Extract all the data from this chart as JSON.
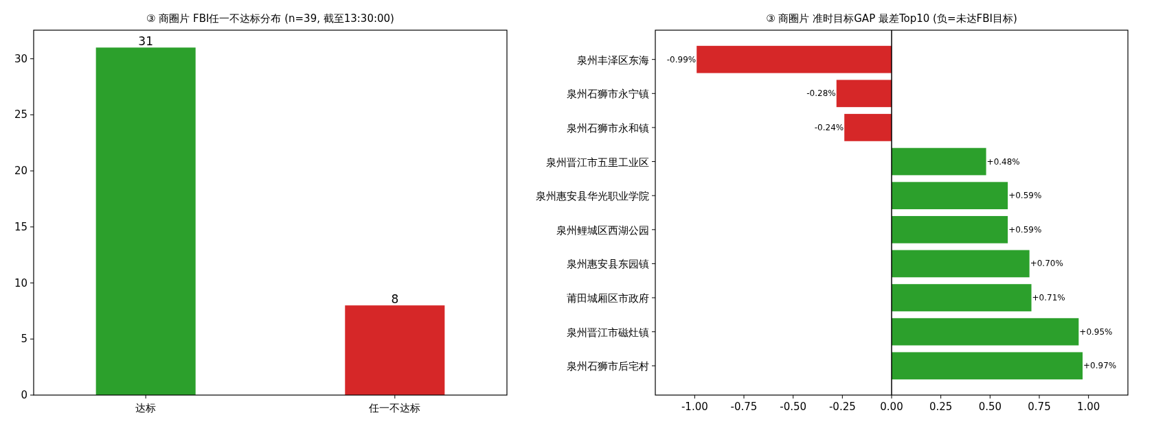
{
  "chart_data": [
    {
      "type": "bar",
      "title": "③ 商圈片 FBI任一不达标分布 (n=39, 截至13:30:00)",
      "categories": [
        "达标",
        "任一不达标"
      ],
      "values": [
        31,
        8
      ],
      "colors": [
        "#2ca02c",
        "#d62728"
      ],
      "ylim": [
        0,
        32.55
      ],
      "yticks": [
        0,
        5,
        10,
        15,
        20,
        25,
        30
      ],
      "data_labels": true
    },
    {
      "type": "bar",
      "orientation": "horizontal",
      "title": "③ 商圈片 准时目标GAP 最差Top10 (负=未达FBI目标)",
      "categories": [
        "泉州丰泽区东海",
        "泉州石狮市永宁镇",
        "泉州石狮市永和镇",
        "泉州晋江市五里工业区",
        "泉州惠安县华光职业学院",
        "泉州鲤城区西湖公园",
        "泉州惠安县东园镇",
        "莆田城厢区市政府",
        "泉州晋江市磁灶镇",
        "泉州石狮市后宅村"
      ],
      "values": [
        -0.99,
        -0.28,
        -0.24,
        0.48,
        0.59,
        0.59,
        0.7,
        0.71,
        0.95,
        0.97
      ],
      "colors": [
        "#d62728",
        "#d62728",
        "#d62728",
        "#2ca02c",
        "#2ca02c",
        "#2ca02c",
        "#2ca02c",
        "#2ca02c",
        "#2ca02c",
        "#2ca02c"
      ],
      "value_labels": [
        "-0.99%",
        "-0.28%",
        "-0.24%",
        "+0.48%",
        "+0.59%",
        "+0.59%",
        "+0.70%",
        "+0.71%",
        "+0.95%",
        "+0.97%"
      ],
      "xlim": [
        -1.2,
        1.2
      ],
      "xticks": [
        {
          "value": -1,
          "label": "-1.00"
        },
        {
          "value": -0.75,
          "label": "-0.75"
        },
        {
          "value": -0.5,
          "label": "-0.50"
        },
        {
          "value": -0.25,
          "label": "-0.25"
        },
        {
          "value": 0,
          "label": "0.00"
        },
        {
          "value": 0.25,
          "label": "0.25"
        },
        {
          "value": 0.5,
          "label": "0.50"
        },
        {
          "value": 0.75,
          "label": "0.75"
        },
        {
          "value": 1,
          "label": "1.00"
        }
      ],
      "ref_lines": [
        {
          "axis": "x",
          "value": 0,
          "color": "#000000"
        }
      ]
    }
  ]
}
